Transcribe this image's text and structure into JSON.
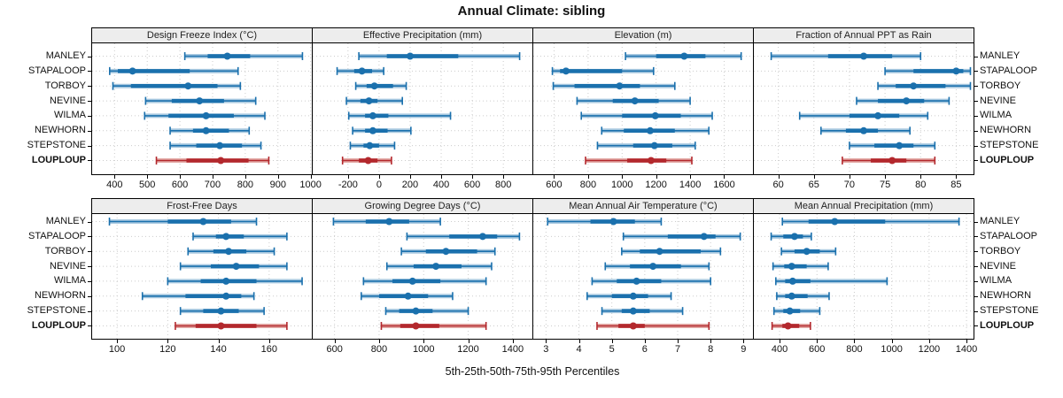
{
  "title": "Annual Climate: sibling",
  "caption": "5th-25th-50th-75th-95th Percentiles",
  "sites": [
    "MANLEY",
    "STAPALOOP",
    "TORBOY",
    "NEVINE",
    "WILMA",
    "NEWHORN",
    "STEPSTONE",
    "LOUPLOUP"
  ],
  "highlight_site": "LOUPLOUP",
  "colors": {
    "series": "#1a70ad",
    "series_light": "#a9c9e0",
    "highlight": "#b3282d",
    "highlight_light": "#e3aaa6",
    "header_bg": "#ededed",
    "grid": "#cccccc",
    "border": "#000000"
  },
  "chart_data": {
    "type": "dotplot-interval-trellis",
    "layout": "2 rows x 4 columns",
    "percentiles": [
      "5th",
      "25th",
      "50th",
      "75th",
      "95th"
    ],
    "categories": [
      "MANLEY",
      "STAPALOOP",
      "TORBOY",
      "NEVINE",
      "WILMA",
      "NEWHORN",
      "STEPSTONE",
      "LOUPLOUP"
    ],
    "panels": [
      {
        "title": "Design Freeze Index (°C)",
        "xlim": [
          330,
          1005
        ],
        "ticks": [
          400,
          500,
          600,
          700,
          800,
          900,
          1000
        ],
        "values": {
          "MANLEY": [
            615,
            685,
            745,
            815,
            975
          ],
          "STAPALOOP": [
            385,
            410,
            455,
            630,
            778
          ],
          "TORBOY": [
            395,
            450,
            625,
            715,
            785
          ],
          "NEVINE": [
            495,
            575,
            660,
            735,
            832
          ],
          "WILMA": [
            492,
            565,
            680,
            765,
            860
          ],
          "NEWHORN": [
            570,
            640,
            680,
            750,
            812
          ],
          "STEPSTONE": [
            570,
            650,
            722,
            790,
            848
          ],
          "LOUPLOUP": [
            528,
            620,
            725,
            810,
            872
          ]
        }
      },
      {
        "title": "Effective Precipitation (mm)",
        "xlim": [
          -430,
          990
        ],
        "ticks": [
          -200,
          0,
          200,
          400,
          600,
          800
        ],
        "values": {
          "MANLEY": [
            -130,
            50,
            200,
            510,
            905
          ],
          "STAPALOOP": [
            -270,
            -160,
            -110,
            -45,
            30
          ],
          "TORBOY": [
            -150,
            -80,
            -30,
            90,
            175
          ],
          "NEVINE": [
            -210,
            -120,
            -65,
            -10,
            150
          ],
          "WILMA": [
            -195,
            -90,
            -40,
            60,
            460
          ],
          "NEWHORN": [
            -170,
            -90,
            -40,
            55,
            205
          ],
          "STEPSTONE": [
            -185,
            -100,
            -60,
            0,
            100
          ],
          "LOUPLOUP": [
            -235,
            -130,
            -70,
            -10,
            80
          ]
        }
      },
      {
        "title": "Elevation (m)",
        "xlim": [
          475,
          1772
        ],
        "ticks": [
          600,
          800,
          1000,
          1200,
          1400,
          1600
        ],
        "values": {
          "MANLEY": [
            1020,
            1200,
            1365,
            1490,
            1700
          ],
          "STAPALOOP": [
            590,
            635,
            670,
            1000,
            1185
          ],
          "TORBOY": [
            595,
            720,
            985,
            1105,
            1310
          ],
          "NEVINE": [
            735,
            945,
            1075,
            1215,
            1400
          ],
          "WILMA": [
            760,
            1000,
            1195,
            1345,
            1530
          ],
          "NEWHORN": [
            880,
            1010,
            1165,
            1310,
            1510
          ],
          "STEPSTONE": [
            855,
            1065,
            1190,
            1295,
            1430
          ],
          "LOUPLOUP": [
            785,
            1030,
            1170,
            1260,
            1410
          ]
        }
      },
      {
        "title": "Fraction of Annual PPT as Rain",
        "xlim": [
          56.5,
          87.5
        ],
        "ticks": [
          60,
          65,
          70,
          75,
          80,
          85
        ],
        "values": {
          "MANLEY": [
            59,
            67,
            72,
            76,
            80
          ],
          "STAPALOOP": [
            75,
            79,
            85,
            86,
            87
          ],
          "TORBOY": [
            74,
            76.5,
            79,
            83.5,
            87
          ],
          "NEVINE": [
            71,
            74,
            78,
            80.5,
            84
          ],
          "WILMA": [
            63,
            70,
            74,
            77,
            81
          ],
          "NEWHORN": [
            66,
            69.5,
            72,
            74,
            78.5
          ],
          "STEPSTONE": [
            70,
            73.5,
            77,
            79,
            82
          ],
          "LOUPLOUP": [
            69,
            73,
            76,
            78,
            82
          ]
        }
      },
      {
        "title": "Frost-Free Days",
        "xlim": [
          90,
          177
        ],
        "ticks": [
          100,
          120,
          140,
          160
        ],
        "values": {
          "MANLEY": [
            97,
            120,
            134,
            145,
            155
          ],
          "STAPALOOP": [
            130,
            139,
            143,
            150,
            167
          ],
          "TORBOY": [
            128,
            138,
            144,
            151,
            162
          ],
          "NEVINE": [
            125,
            137,
            147,
            156,
            167
          ],
          "WILMA": [
            120,
            133,
            143,
            155,
            173
          ],
          "NEWHORN": [
            110,
            127,
            143,
            149,
            154
          ],
          "STEPSTONE": [
            125,
            134,
            141,
            148,
            158
          ],
          "LOUPLOUP": [
            123,
            131,
            141,
            155,
            167
          ]
        }
      },
      {
        "title": "Growing Degree Days (°C)",
        "xlim": [
          500,
          1490
        ],
        "ticks": [
          600,
          800,
          1000,
          1200,
          1400
        ],
        "values": {
          "MANLEY": [
            595,
            740,
            845,
            935,
            1075
          ],
          "STAPALOOP": [
            925,
            1115,
            1265,
            1330,
            1430
          ],
          "TORBOY": [
            900,
            1010,
            1100,
            1240,
            1320
          ],
          "NEVINE": [
            835,
            955,
            1055,
            1170,
            1305
          ],
          "WILMA": [
            730,
            860,
            950,
            1075,
            1280
          ],
          "NEWHORN": [
            720,
            800,
            930,
            1020,
            1130
          ],
          "STEPSTONE": [
            830,
            890,
            965,
            1040,
            1200
          ],
          "LOUPLOUP": [
            810,
            895,
            965,
            1070,
            1280
          ]
        }
      },
      {
        "title": "Mean Annual Air Temperature (°C)",
        "xlim": [
          2.6,
          9.3
        ],
        "ticks": [
          3,
          4,
          5,
          6,
          7,
          8,
          9
        ],
        "values": {
          "MANLEY": [
            3.05,
            4.35,
            5.05,
            5.7,
            6.5
          ],
          "STAPALOOP": [
            5.35,
            6.7,
            7.8,
            8.15,
            8.9
          ],
          "TORBOY": [
            5.3,
            5.85,
            6.45,
            7.7,
            8.3
          ],
          "NEVINE": [
            4.8,
            5.55,
            6.25,
            7.1,
            7.95
          ],
          "WILMA": [
            4.4,
            5.15,
            5.75,
            6.5,
            8.0
          ],
          "NEWHORN": [
            4.25,
            5.0,
            5.65,
            6.1,
            6.8
          ],
          "STEPSTONE": [
            4.7,
            5.3,
            5.65,
            6.15,
            7.15
          ],
          "LOUPLOUP": [
            4.55,
            5.2,
            5.65,
            6.0,
            7.95
          ]
        }
      },
      {
        "title": "Mean Annual Precipitation (mm)",
        "xlim": [
          260,
          1440
        ],
        "ticks": [
          400,
          600,
          800,
          1000,
          1200,
          1400
        ],
        "values": {
          "MANLEY": [
            415,
            555,
            695,
            965,
            1360
          ],
          "STAPALOOP": [
            355,
            420,
            480,
            525,
            570
          ],
          "TORBOY": [
            410,
            480,
            545,
            615,
            700
          ],
          "NEVINE": [
            365,
            425,
            465,
            545,
            660
          ],
          "WILMA": [
            380,
            430,
            470,
            565,
            975
          ],
          "NEWHORN": [
            385,
            430,
            465,
            550,
            665
          ],
          "STEPSTONE": [
            370,
            420,
            455,
            510,
            615
          ],
          "LOUPLOUP": [
            360,
            415,
            445,
            505,
            565
          ]
        }
      }
    ]
  }
}
